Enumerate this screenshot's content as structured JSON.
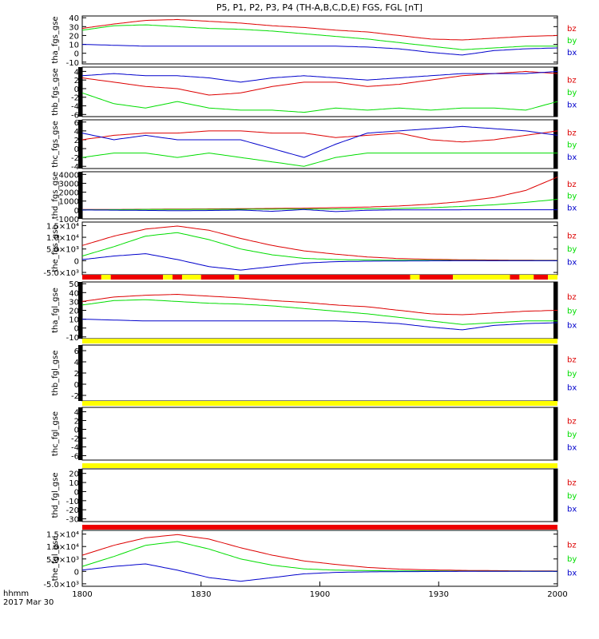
{
  "chart_data": {
    "type": "line",
    "title": "P5, P1, P2, P3, P4 (TH-A,B,C,D,E) FGS, FGL [nT]",
    "x_axis": {
      "ticks": [
        "1800",
        "1830",
        "1900",
        "1930",
        "2000"
      ],
      "label_line1": "hhmm",
      "label_line2": "2017 Mar 30"
    },
    "component_colors": {
      "bz": "#dd0000",
      "by": "#00dd00",
      "bx": "#0000cc"
    },
    "bar_colors": {
      "red": "#ee0000",
      "yellow": "#ffff00"
    },
    "panels": [
      {
        "name": "tha_fgs_gse",
        "ticks": [
          "40",
          "30",
          "20",
          "10",
          "0",
          "-10"
        ],
        "tick_values": [
          40,
          30,
          20,
          10,
          0,
          -10
        ],
        "ylim": [
          -12,
          42
        ],
        "series": [
          {
            "name": "bz",
            "values": [
              28,
              33,
              37,
              38,
              36,
              34,
              31,
              29,
              26,
              24,
              20,
              16,
              15,
              17,
              19,
              20
            ]
          },
          {
            "name": "by",
            "values": [
              26,
              31,
              32,
              30,
              28,
              27,
              25,
              22,
              19,
              16,
              12,
              8,
              4,
              6,
              8,
              8
            ]
          },
          {
            "name": "bx",
            "values": [
              10,
              9,
              8,
              8,
              8,
              8,
              8,
              8,
              8,
              7,
              5,
              1,
              -2,
              3,
              5,
              6
            ]
          }
        ]
      },
      {
        "name": "thb_fgs_gse",
        "ticks": [
          "4",
          "2",
          "0",
          "-2",
          "-4",
          "-6"
        ],
        "tick_values": [
          4,
          2,
          0,
          -2,
          -4,
          -6
        ],
        "ylim": [
          -6.5,
          5
        ],
        "series": [
          {
            "name": "bz",
            "values": [
              2.5,
              1.5,
              0.5,
              0,
              -1.5,
              -1,
              0.5,
              1.5,
              1.5,
              0.5,
              1,
              2,
              3,
              3.5,
              4,
              3.5
            ]
          },
          {
            "name": "by",
            "values": [
              -1,
              -3.5,
              -4.5,
              -3,
              -4.5,
              -5,
              -5,
              -5.5,
              -4.5,
              -5,
              -4.5,
              -5,
              -4.5,
              -4.5,
              -5,
              -3
            ]
          },
          {
            "name": "bx",
            "values": [
              3,
              3.5,
              3,
              3,
              2.5,
              1.5,
              2.5,
              3,
              2.5,
              2,
              2.5,
              3,
              3.5,
              3.5,
              3.5,
              4
            ]
          }
        ]
      },
      {
        "name": "thc_fgs_gse",
        "ticks": [
          "6",
          "4",
          "2",
          "0",
          "-2",
          "-4"
        ],
        "tick_values": [
          6,
          4,
          2,
          0,
          -2,
          -4
        ],
        "ylim": [
          -4.5,
          6.5
        ],
        "series": [
          {
            "name": "bz",
            "values": [
              2,
              3,
              3.5,
              3.5,
              4,
              4,
              3.5,
              3.5,
              2.5,
              3,
              3.5,
              2,
              1.5,
              2,
              3,
              4
            ]
          },
          {
            "name": "by",
            "values": [
              -2,
              -1,
              -1,
              -2,
              -1,
              -2,
              -3,
              -4,
              -2,
              -1,
              -1,
              -1,
              -1,
              -1,
              -1,
              -1
            ]
          },
          {
            "name": "bx",
            "values": [
              3.5,
              2,
              3,
              2,
              2,
              2,
              0,
              -2,
              1,
              3.5,
              4,
              4.5,
              5,
              4.5,
              4,
              3
            ]
          }
        ]
      },
      {
        "name": "thd_fgs_gse",
        "ticks": [
          "4000",
          "3000",
          "2000",
          "1000",
          "0",
          "-1000"
        ],
        "tick_values": [
          4000,
          3000,
          2000,
          1000,
          0,
          -1000
        ],
        "ylim": [
          -1000,
          4300
        ],
        "series": [
          {
            "name": "bz",
            "values": [
              50,
              60,
              80,
              100,
              120,
              140,
              170,
              200,
              260,
              330,
              450,
              650,
              950,
              1400,
              2200,
              3700
            ]
          },
          {
            "name": "by",
            "values": [
              20,
              30,
              50,
              60,
              70,
              80,
              90,
              100,
              110,
              130,
              170,
              260,
              400,
              580,
              850,
              1200
            ]
          },
          {
            "name": "bx",
            "values": [
              0,
              -20,
              -50,
              -80,
              -60,
              -10,
              -150,
              50,
              -180,
              -30,
              10,
              15,
              20,
              25,
              25,
              25
            ]
          }
        ]
      },
      {
        "name": "the_fgs_gse",
        "ticks": [
          "1.5×10⁴",
          "1.0×10⁴",
          "5.0×10³",
          "0",
          "-5.0×10³"
        ],
        "tick_values": [
          15000,
          10000,
          5000,
          0,
          -5000
        ],
        "ylim": [
          -6000,
          16500
        ],
        "series": [
          {
            "name": "bz",
            "values": [
              6500,
              10500,
              13500,
              14800,
              13000,
              9500,
              6500,
              4200,
              2800,
              1600,
              900,
              600,
              400,
              300,
              200,
              150
            ]
          },
          {
            "name": "by",
            "values": [
              2000,
              6000,
              10500,
              12000,
              9000,
              5000,
              2500,
              1000,
              500,
              300,
              200,
              150,
              100,
              80,
              60,
              50
            ]
          },
          {
            "name": "bx",
            "values": [
              500,
              2000,
              3000,
              500,
              -2500,
              -4000,
              -2500,
              -1000,
              -400,
              -200,
              -100,
              -50,
              0,
              0,
              0,
              0
            ]
          }
        ]
      },
      {
        "name": "tha_fgl_gse",
        "ticks": [
          "50",
          "40",
          "30",
          "20",
          "10",
          "0",
          "-10"
        ],
        "tick_values": [
          50,
          40,
          30,
          20,
          10,
          0,
          -10
        ],
        "ylim": [
          -12,
          52
        ],
        "series": [
          {
            "name": "bz",
            "values": [
              30,
              35,
              37,
              38,
              36,
              34,
              31,
              29,
              26,
              24,
              20,
              16,
              15,
              17,
              19,
              20
            ]
          },
          {
            "name": "by",
            "values": [
              26,
              31,
              32,
              30,
              28,
              27,
              25,
              22,
              19,
              16,
              12,
              8,
              4,
              6,
              8,
              8
            ]
          },
          {
            "name": "bx",
            "values": [
              10,
              9,
              8,
              8,
              8,
              8,
              8,
              8,
              8,
              7,
              5,
              1,
              -2,
              3,
              5,
              6
            ]
          }
        ]
      },
      {
        "name": "thb_fgl_gse",
        "ticks": [
          "6",
          "4",
          "2",
          "0",
          "-2"
        ],
        "tick_values": [
          6,
          4,
          2,
          0,
          -2
        ],
        "ylim": [
          -3,
          7
        ],
        "series": []
      },
      {
        "name": "thc_fgl_gse",
        "ticks": [
          "4",
          "2",
          "0",
          "-2",
          "-4",
          "-6"
        ],
        "tick_values": [
          4,
          2,
          0,
          -2,
          -4,
          -6
        ],
        "ylim": [
          -7,
          5
        ],
        "series": []
      },
      {
        "name": "thd_fgl_gse",
        "ticks": [
          "20",
          "10",
          "0",
          "-10",
          "-20",
          "-30"
        ],
        "tick_values": [
          20,
          10,
          0,
          -10,
          -20,
          -30
        ],
        "ylim": [
          -33,
          25
        ],
        "series": []
      },
      {
        "name": "the_fgl_gse",
        "ticks": [
          "1.5×10⁴",
          "1.0×10⁴",
          "5.0×10³",
          "0",
          "-5.0×10³"
        ],
        "tick_values": [
          15000,
          10000,
          5000,
          0,
          -5000
        ],
        "ylim": [
          -6000,
          16500
        ],
        "series": [
          {
            "name": "bz",
            "values": [
              6500,
              10500,
              13500,
              14800,
              13000,
              9500,
              6500,
              4200,
              2800,
              1600,
              900,
              600,
              400,
              300,
              200,
              150
            ]
          },
          {
            "name": "by",
            "values": [
              2000,
              6000,
              10500,
              12000,
              9000,
              5000,
              2500,
              1000,
              500,
              300,
              200,
              150,
              100,
              80,
              60,
              50
            ]
          },
          {
            "name": "bx",
            "values": [
              500,
              2000,
              3000,
              500,
              -2500,
              -4000,
              -2500,
              -1000,
              -400,
              -200,
              -100,
              -50,
              0,
              0,
              0,
              0
            ]
          }
        ]
      }
    ],
    "mode_bars": [
      [
        [
          "red",
          0,
          0.04
        ],
        [
          "yellow",
          0.04,
          0.06
        ],
        [
          "red",
          0.06,
          0.17
        ],
        [
          "yellow",
          0.17,
          0.19
        ],
        [
          "red",
          0.19,
          0.21
        ],
        [
          "yellow",
          0.21,
          0.25
        ],
        [
          "red",
          0.25,
          0.32
        ],
        [
          "yellow",
          0.32,
          0.33
        ],
        [
          "red",
          0.33,
          0.69
        ],
        [
          "yellow",
          0.69,
          0.71
        ],
        [
          "red",
          0.71,
          0.78
        ],
        [
          "yellow",
          0.78,
          0.9
        ],
        [
          "red",
          0.9,
          0.92
        ],
        [
          "yellow",
          0.92,
          0.95
        ],
        [
          "red",
          0.95,
          0.98
        ],
        [
          "yellow",
          0.98,
          1
        ]
      ],
      [
        [
          "yellow",
          0,
          1
        ]
      ],
      [
        [
          "yellow",
          0,
          1
        ]
      ],
      [
        [
          "yellow",
          0,
          1
        ]
      ],
      [
        [
          "red",
          0,
          1
        ]
      ]
    ]
  }
}
